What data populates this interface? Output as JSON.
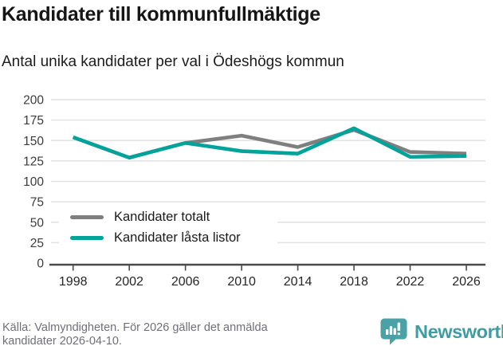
{
  "title": "Kandidater till kommunfullmäktige",
  "subtitle": "Antal unika kandidater per val i Ödeshögs kommun",
  "chart_data": {
    "type": "line",
    "x": [
      1998,
      2002,
      2006,
      2010,
      2014,
      2018,
      2022,
      2026
    ],
    "x_tick_labels": [
      "1998",
      "2002",
      "2006",
      "2010",
      "2014",
      "2018",
      "2022",
      "2026"
    ],
    "series": [
      {
        "name": "Kandidater totalt",
        "color": "#7f7f7f",
        "values": [
          154,
          129,
          147,
          156,
          142,
          163,
          136,
          134
        ]
      },
      {
        "name": "Kandidater låsta listor",
        "color": "#00a39a",
        "values": [
          154,
          129,
          147,
          137,
          134,
          165,
          130,
          131
        ]
      }
    ],
    "ylim": [
      0,
      200
    ],
    "y_ticks": [
      0,
      25,
      50,
      75,
      100,
      125,
      150,
      175,
      200
    ],
    "grid": "horizontal",
    "legend_position": "inside-bottom-left"
  },
  "footer": {
    "source_line1": "Källa: Valmyndigheten. För 2026 gäller det anmälda",
    "source_line2": "kandidater 2026-04-10."
  },
  "logo": {
    "text": "Newsworthy",
    "icon": "bar-chart-speech-bubble-icon",
    "icon_color": "#4aa1a6",
    "text_color": "#3f9da1"
  },
  "colors": {
    "accent_teal": "#00a39a",
    "series_gray": "#7f7f7f",
    "gridline": "#e2e2e2",
    "axis": "#4a4a4a",
    "footer_gray": "#6f6f78"
  }
}
